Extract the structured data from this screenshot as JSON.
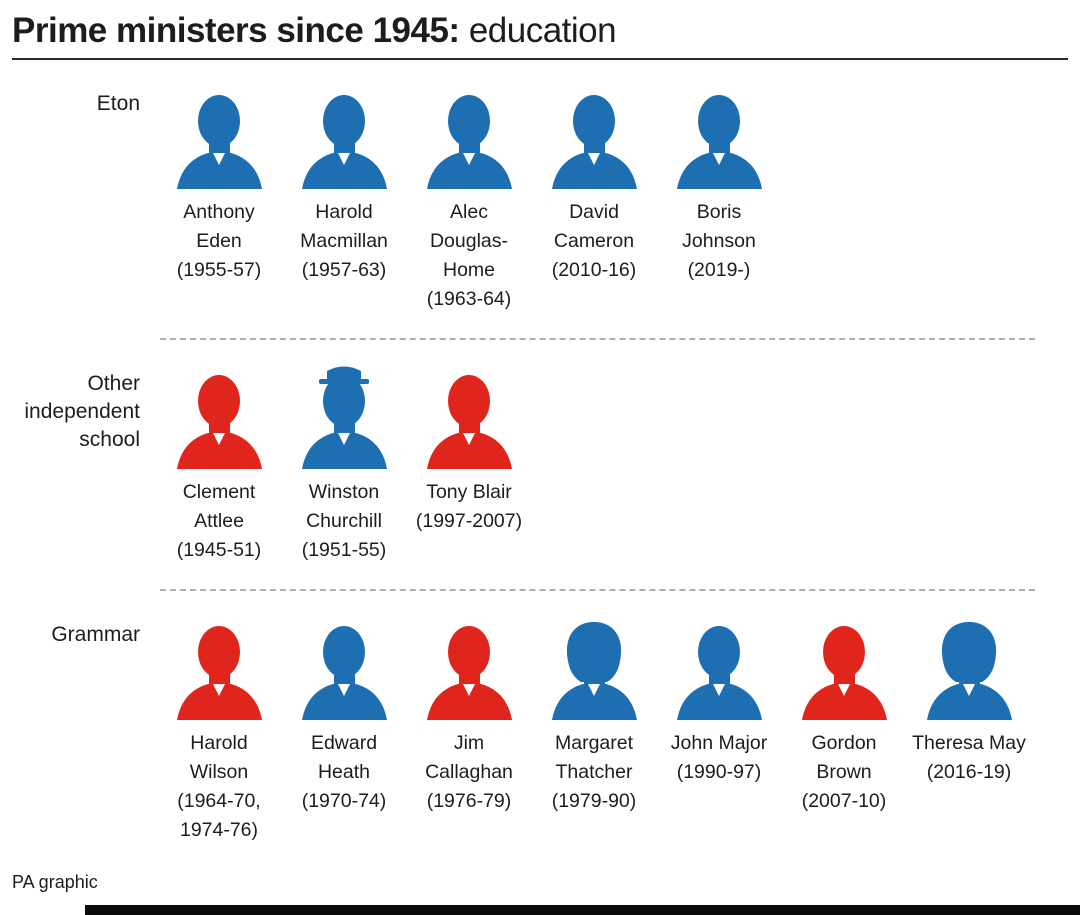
{
  "title": {
    "bold": "Prime ministers since 1945:",
    "regular": " education"
  },
  "footer": {
    "credit": "PA graphic"
  },
  "colors": {
    "conservative": "#1e6fb2",
    "labour": "#e0261c"
  },
  "sections": [
    {
      "label": "Eton",
      "pms": [
        {
          "name": "Anthony Eden",
          "dates": "(1955-57)",
          "party": "conservative",
          "portrait": "bust-male-icon"
        },
        {
          "name": "Harold Macmillan",
          "dates": "(1957-63)",
          "party": "conservative",
          "portrait": "bust-male-icon"
        },
        {
          "name": "Alec Douglas-Home",
          "dates": "(1963-64)",
          "party": "conservative",
          "portrait": "bust-male-icon"
        },
        {
          "name": "David Cameron",
          "dates": "(2010-16)",
          "party": "conservative",
          "portrait": "bust-male-icon"
        },
        {
          "name": "Boris Johnson",
          "dates": "(2019-)",
          "party": "conservative",
          "portrait": "bust-male-icon"
        }
      ]
    },
    {
      "label": "Other independent school",
      "pms": [
        {
          "name": "Clement Attlee",
          "dates": "(1945-51)",
          "party": "labour",
          "portrait": "bust-male-icon"
        },
        {
          "name": "Winston Churchill",
          "dates": "(1951-55)",
          "party": "conservative",
          "portrait": "bust-hat-icon"
        },
        {
          "name": "Tony Blair",
          "dates": "(1997-2007)",
          "party": "labour",
          "portrait": "bust-male-icon"
        }
      ]
    },
    {
      "label": "Grammar",
      "pms": [
        {
          "name": "Harold Wilson",
          "dates": "(1964-70, 1974-76)",
          "party": "labour",
          "portrait": "bust-male-icon"
        },
        {
          "name": "Edward Heath",
          "dates": "(1970-74)",
          "party": "conservative",
          "portrait": "bust-male-icon"
        },
        {
          "name": "Jim Callaghan",
          "dates": "(1976-79)",
          "party": "labour",
          "portrait": "bust-male-icon"
        },
        {
          "name": "Margaret Thatcher",
          "dates": "(1979-90)",
          "party": "conservative",
          "portrait": "bust-female-icon"
        },
        {
          "name": "John Major",
          "dates": "(1990-97)",
          "party": "conservative",
          "portrait": "bust-male-icon"
        },
        {
          "name": "Gordon Brown",
          "dates": "(2007-10)",
          "party": "labour",
          "portrait": "bust-male-icon"
        },
        {
          "name": "Theresa May",
          "dates": "(2016-19)",
          "party": "conservative",
          "portrait": "bust-female-icon"
        }
      ]
    }
  ]
}
